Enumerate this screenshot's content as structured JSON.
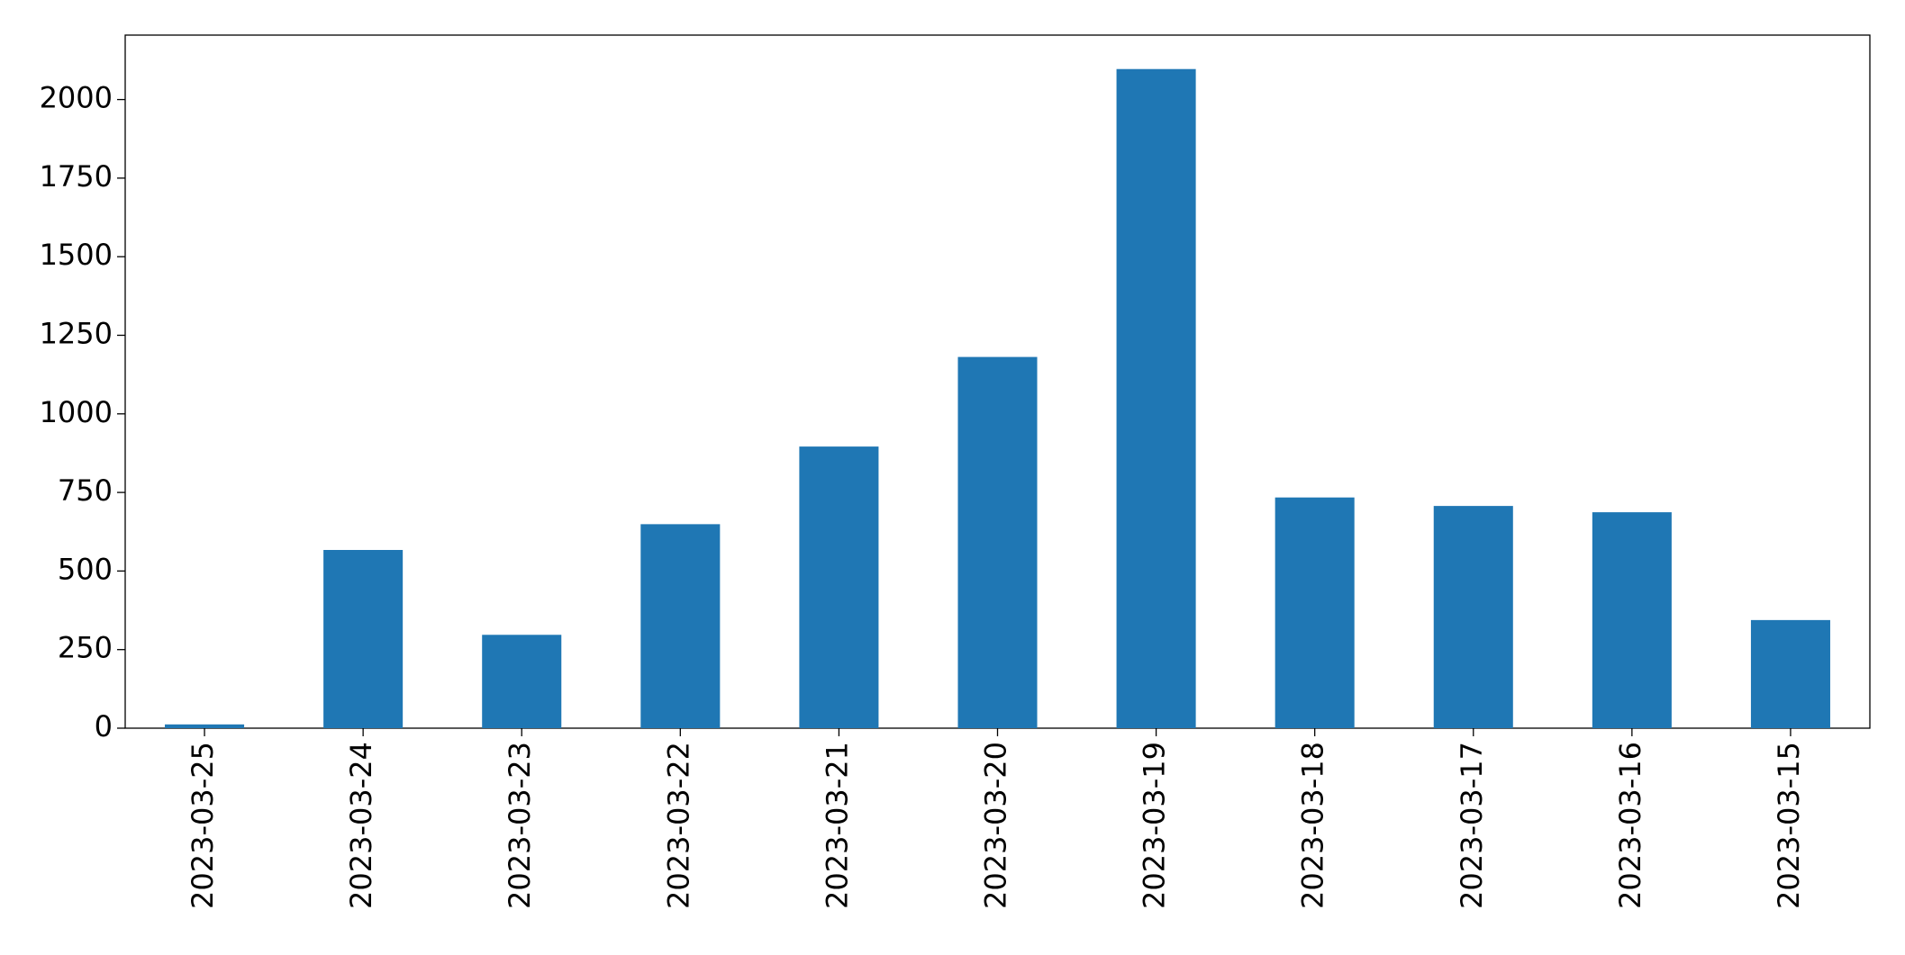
{
  "chart_data": {
    "type": "bar",
    "categories": [
      "2023-03-25",
      "2023-03-24",
      "2023-03-23",
      "2023-03-22",
      "2023-03-21",
      "2023-03-20",
      "2023-03-19",
      "2023-03-18",
      "2023-03-17",
      "2023-03-16",
      "2023-03-15"
    ],
    "values": [
      12,
      567,
      297,
      649,
      896,
      1181,
      2097,
      734,
      707,
      687,
      344
    ],
    "color": "#1f77b4",
    "ylim": [
      0,
      2205
    ],
    "yticks": [
      0,
      250,
      500,
      750,
      1000,
      1250,
      1500,
      1750,
      2000
    ],
    "grid": false
  }
}
